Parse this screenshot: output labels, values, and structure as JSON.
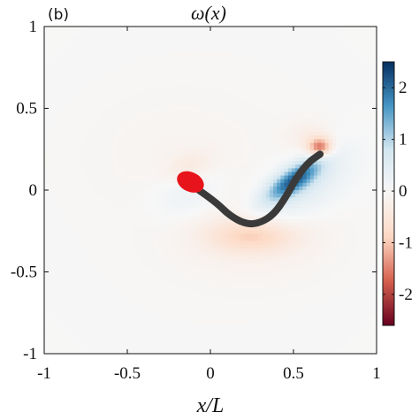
{
  "chart_data": {
    "type": "heatmap",
    "panel_label": "(b)",
    "title": "ω(x)",
    "xlabel": "x/L",
    "ylabel": "",
    "xlim": [
      -1,
      1
    ],
    "ylim": [
      -1,
      1
    ],
    "xticks": [
      -1,
      -0.5,
      0,
      0.5,
      1
    ],
    "xtick_labels": [
      "-1",
      "-0.5",
      "0",
      "0.5",
      "1"
    ],
    "yticks": [
      -1,
      -0.5,
      0,
      0.5,
      1
    ],
    "ytick_labels": [
      "-1",
      "-0.5",
      "0",
      "0.5",
      "1"
    ],
    "grid": false,
    "colorbar": {
      "placement": "right",
      "range": [
        -2.6,
        2.5
      ],
      "ticks": [
        2,
        1,
        0,
        -1,
        -2
      ],
      "tick_labels": [
        "2",
        "1",
        "0",
        "-1",
        "-2"
      ],
      "colormap": [
        "#67001f",
        "#d6604d",
        "#fddbc7",
        "#f7f7f7",
        "#d1e5f0",
        "#4393c3",
        "#053061"
      ]
    },
    "swimmer": {
      "head": {
        "cx": -0.12,
        "cy": 0.05,
        "rx": 0.085,
        "ry": 0.06,
        "angle_deg": 25,
        "color": "#e8141b"
      },
      "tail_path": [
        [
          -0.07,
          0.0
        ],
        [
          0.03,
          -0.07
        ],
        [
          0.12,
          -0.16
        ],
        [
          0.22,
          -0.21
        ],
        [
          0.3,
          -0.2
        ],
        [
          0.38,
          -0.15
        ],
        [
          0.45,
          -0.05
        ],
        [
          0.52,
          0.08
        ],
        [
          0.59,
          0.17
        ],
        [
          0.66,
          0.22
        ]
      ],
      "tail_color": "#3a3a3a"
    },
    "vorticity_features": [
      {
        "x": 0.5,
        "y": 0.06,
        "sx": 0.05,
        "sy": 0.14,
        "strength": 1.8,
        "angle_deg": -55
      },
      {
        "x": 0.56,
        "y": 0.02,
        "sx": 0.11,
        "sy": 0.22,
        "strength": 0.55,
        "angle_deg": -55
      },
      {
        "x": 0.25,
        "y": -0.28,
        "sx": 0.18,
        "sy": 0.07,
        "strength": -0.75,
        "angle_deg": 0
      },
      {
        "x": 0.25,
        "y": -0.3,
        "sx": 0.3,
        "sy": 0.16,
        "strength": -0.22,
        "angle_deg": 0
      },
      {
        "x": 0.66,
        "y": 0.26,
        "sx": 0.05,
        "sy": 0.04,
        "strength": -1.6,
        "angle_deg": 0
      },
      {
        "x": 0.6,
        "y": 0.32,
        "sx": 0.1,
        "sy": 0.07,
        "strength": -0.3,
        "angle_deg": 0
      },
      {
        "x": -0.14,
        "y": -0.02,
        "sx": 0.14,
        "sy": 0.1,
        "strength": 0.3,
        "angle_deg": 20
      },
      {
        "x": -0.13,
        "y": 0.14,
        "sx": 0.1,
        "sy": 0.06,
        "strength": -0.35,
        "angle_deg": 20
      },
      {
        "x": -0.2,
        "y": 0.24,
        "sx": 0.35,
        "sy": 0.22,
        "strength": -0.08,
        "angle_deg": 0
      },
      {
        "x": 0.0,
        "y": 0.0,
        "sx": 0.9,
        "sy": 0.9,
        "strength": -0.04,
        "angle_deg": 0
      }
    ]
  }
}
